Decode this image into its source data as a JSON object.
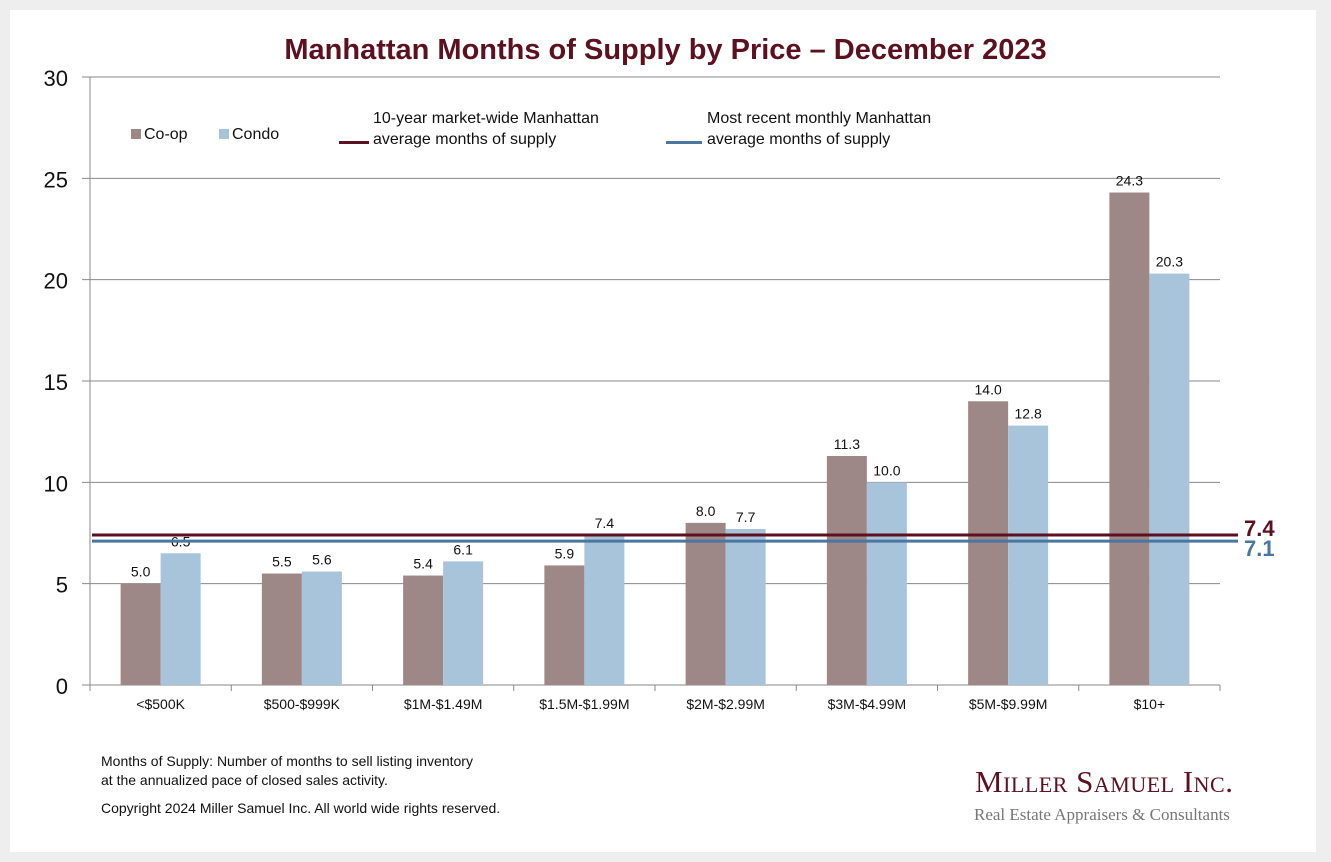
{
  "chart_data": {
    "type": "bar",
    "title": "Manhattan Months of Supply by Price – December 2023",
    "xlabel": "",
    "ylabel": "",
    "ylim": [
      0,
      30
    ],
    "yticks": [
      0,
      5,
      10,
      15,
      20,
      25,
      30
    ],
    "grid": true,
    "legend_position": "top-left",
    "categories": [
      "<$500K",
      "$500-$999K",
      "$1M-$1.49M",
      "$1.5M-$1.99M",
      "$2M-$2.99M",
      "$3M-$4.99M",
      "$5M-$9.99M",
      "$10+"
    ],
    "series": [
      {
        "name": "Co-op",
        "color": "#9e8787",
        "values": [
          5.0,
          5.5,
          5.4,
          5.9,
          8.0,
          11.3,
          14.0,
          24.3
        ],
        "labels": [
          "5.0",
          "5.5",
          "5.4",
          "5.9",
          "8.0",
          "11.3",
          "14.0",
          "24.3"
        ]
      },
      {
        "name": "Condo",
        "color": "#a8c4da",
        "values": [
          6.5,
          5.6,
          6.1,
          7.4,
          7.7,
          10.0,
          12.8,
          20.3
        ],
        "labels": [
          "6.5",
          "5.6",
          "6.1",
          "7.4",
          "7.7",
          "10.0",
          "12.8",
          "20.3"
        ]
      }
    ],
    "reference_lines": [
      {
        "name": "10-year market-wide Manhattan average months of supply",
        "value": 7.4,
        "label": "7.4",
        "color": "#5c1020"
      },
      {
        "name": "Most recent monthly Manhattan average months of supply",
        "value": 7.1,
        "label": "7.1",
        "color": "#4a76a0"
      }
    ]
  },
  "legend": {
    "coop": "Co-op",
    "condo": "Condo",
    "ten_year_line1": "10-year market-wide Manhattan",
    "ten_year_line2": "average months of supply",
    "recent_line1": "Most recent monthly Manhattan",
    "recent_line2": "average months of supply"
  },
  "footer": {
    "definition_line1": "Months of Supply: Number of months to sell listing inventory",
    "definition_line2": "at the annualized pace of closed sales activity.",
    "copyright": "Copyright 2024 Miller Samuel Inc.  All world wide rights reserved."
  },
  "logo": {
    "name": "Miller Samuel Inc.",
    "tagline": "Real Estate Appraisers & Consultants"
  }
}
